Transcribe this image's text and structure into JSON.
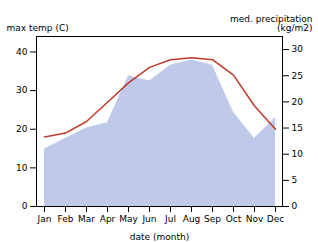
{
  "chart_data": {
    "type": "line",
    "xlabel": "date (month)",
    "ylabel": "max temp (C)",
    "y2label": "med. precipitation\n(kg/m2)",
    "categories": [
      "Jan",
      "Feb",
      "Mar",
      "Apr",
      "May",
      "Jun",
      "Jul",
      "Aug",
      "Sep",
      "Oct",
      "Nov",
      "Dec"
    ],
    "series": [
      {
        "type": "area",
        "axis": "y2",
        "color": "#b8c4e8",
        "values": [
          11,
          13,
          15,
          16,
          25,
          24,
          27,
          28,
          27,
          18,
          13,
          17
        ]
      },
      {
        "type": "line",
        "color": "#c0392b",
        "values": [
          18,
          19,
          22,
          27,
          32,
          36,
          38,
          38.5,
          38,
          34,
          26,
          20
        ]
      }
    ],
    "ylim": [
      0,
      44
    ],
    "yticks": [
      0,
      10,
      20,
      30,
      40
    ],
    "y2lim": [
      0,
      32.5
    ],
    "y2ticks": [
      0,
      5,
      10,
      15,
      20,
      25,
      30
    ],
    "grid": false
  }
}
